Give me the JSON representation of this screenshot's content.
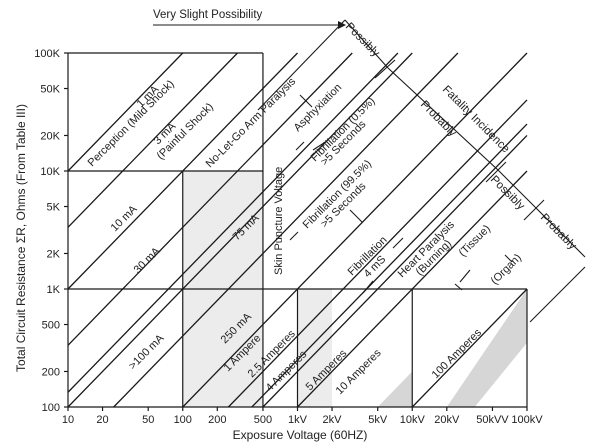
{
  "chart_data": {
    "type": "diagram",
    "xlabel": "Exposure Voltage (60HZ)",
    "ylabel": "Total Circuit Resistance ΣR, Ohms (From Table III)",
    "x_ticks": [
      "10",
      "20",
      "50",
      "100",
      "200",
      "500",
      "1kV",
      "2kV",
      "5kV",
      "10kV",
      "20kV",
      "50kVV",
      "100kV"
    ],
    "x_tick_values": [
      10,
      20,
      50,
      100,
      200,
      500,
      1000,
      2000,
      5000,
      10000,
      20000,
      50000,
      100000
    ],
    "y_ticks": [
      "100K",
      "50K",
      "20K",
      "10K",
      "5K",
      "2K",
      "1K",
      "500",
      "200",
      "100"
    ],
    "y_tick_values": [
      100000,
      50000,
      20000,
      10000,
      5000,
      2000,
      1000,
      500,
      200,
      100
    ],
    "xlim": [
      10,
      100000
    ],
    "ylim": [
      100,
      100000
    ],
    "x_scale": "log",
    "y_scale": "log",
    "current_lines": [
      {
        "label": "1 mA",
        "sub": "Perception (Mild Shock)",
        "amps": 0.001
      },
      {
        "label": "3 mA",
        "sub": "(Painful Shock)",
        "amps": 0.003
      },
      {
        "label": "No-Let-Go Arm Paralysis",
        "amps": 0.01
      },
      {
        "label": "10 mA",
        "amps": 0.01
      },
      {
        "label": "30 mA",
        "amps": 0.03
      },
      {
        "label": "75 mA",
        "amps": 0.075
      },
      {
        "label": ">100 mA",
        "amps": 0.1
      },
      {
        "label": "250 mA",
        "amps": 0.25
      },
      {
        "label": "1 Ampere",
        "amps": 1
      },
      {
        "label": "2.5 Amperes",
        "amps": 2.5
      },
      {
        "label": "4 Amperes",
        "amps": 4
      },
      {
        "label": "5 Amperes",
        "amps": 5
      },
      {
        "label": "10 Amperes",
        "amps": 10
      },
      {
        "label": "100 Amperes",
        "amps": 100
      }
    ],
    "annotations": {
      "very_slight": "Very Slight Possibility",
      "possibly_1": "Possibly",
      "fatality": "Fatality Incidence",
      "probably_1": "Probably",
      "possibly_2": "Possibly",
      "probably_2": "Probably",
      "skin_puncture": "Skin Puncture Voltage",
      "asphyxiation": "Asphyxiation",
      "fib1_a": "Fibrillation (0.5%)",
      "fib1_b": ">5 Seconds",
      "fib2_a": "Fibrillation (99.5%)",
      "fib2_b": ">5 Seconds",
      "fib3_a": "Fibrillation",
      "fib3_b": "4 mS",
      "heart_a": "Heart Paralysis",
      "heart_b": "(Burning)",
      "tissue": "(Tissue)",
      "organ": "(Organ)"
    }
  }
}
